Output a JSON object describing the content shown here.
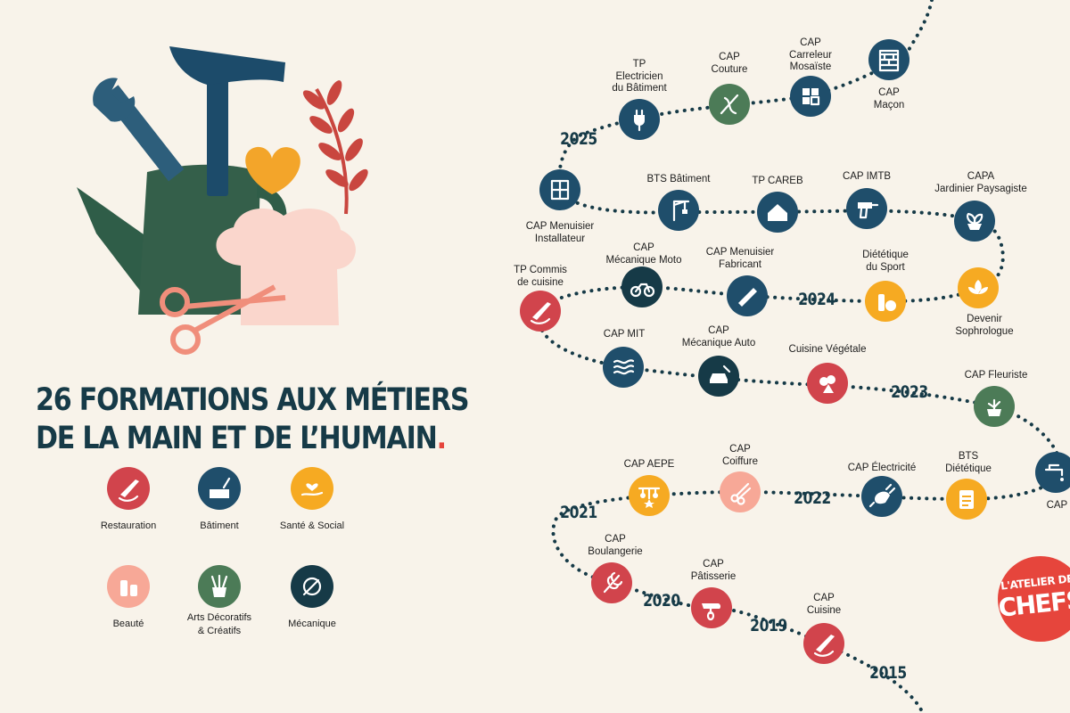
{
  "headline": {
    "line1": "26 FORMATIONS AUX MÉTIERS",
    "line2": "DE LA MAIN ET DE L’HUMAIN",
    "dot": "."
  },
  "colors": {
    "navy": "#1f4e6b",
    "dark": "#163a47",
    "red": "#d1444c",
    "orange": "#f6aa22",
    "green": "#4c7b57",
    "pink": "#f7a897",
    "background": "#f8f3ea"
  },
  "categories": [
    {
      "label": "Restauration",
      "color": "#d1444c",
      "icon": "chef-knife-icon"
    },
    {
      "label": "Bâtiment",
      "color": "#1f4e6b",
      "icon": "trowel-bricks-icon"
    },
    {
      "label": "Santé & Social",
      "color": "#f6aa22",
      "icon": "hand-heart-icon"
    },
    {
      "label": "Beauté",
      "color": "#f7a897",
      "icon": "cosmetics-icon"
    },
    {
      "label": "Arts Décoratifs\n& Créatifs",
      "color": "#4c7b57",
      "icon": "brushes-pot-icon"
    },
    {
      "label": "Mécanique",
      "color": "#163a47",
      "icon": "wrench-gear-icon"
    }
  ],
  "timeline": {
    "years": [
      "2025",
      "2024",
      "2023",
      "2022",
      "2021",
      "2020",
      "2019",
      "2015"
    ],
    "formations": [
      {
        "label": "TP\nElectricien\ndu Bâtiment",
        "color": "#1f4e6b",
        "icon": "plug-icon"
      },
      {
        "label": "CAP\nCouture",
        "color": "#4c7b57",
        "icon": "needle-icon"
      },
      {
        "label": "CAP\nCarreleur\nMosaïste",
        "color": "#1f4e6b",
        "icon": "tiles-icon"
      },
      {
        "label": "CAP\nMaçon",
        "color": "#1f4e6b",
        "icon": "bricks-icon"
      },
      {
        "label": "CAP Menuisier\nInstallateur",
        "color": "#1f4e6b",
        "icon": "window-icon"
      },
      {
        "label": "BTS Bâtiment",
        "color": "#1f4e6b",
        "icon": "crane-icon"
      },
      {
        "label": "TP CAREB",
        "color": "#1f4e6b",
        "icon": "house-icon"
      },
      {
        "label": "CAP IMTB",
        "color": "#1f4e6b",
        "icon": "drill-icon"
      },
      {
        "label": "CAPA\nJardinier Paysagiste",
        "color": "#1f4e6b",
        "icon": "plant-icon"
      },
      {
        "label": "TP Commis\nde cuisine",
        "color": "#d1444c",
        "icon": "chef-knife-icon"
      },
      {
        "label": "CAP\nMécanique Moto",
        "color": "#163a47",
        "icon": "motorbike-icon"
      },
      {
        "label": "CAP Menuisier\nFabricant",
        "color": "#1f4e6b",
        "icon": "saw-icon"
      },
      {
        "label": "Diététique\ndu Sport",
        "color": "#f6aa22",
        "icon": "apple-bottle-icon"
      },
      {
        "label": "Devenir\nSophrologue",
        "color": "#f6aa22",
        "icon": "lotus-icon"
      },
      {
        "label": "CAP MIT",
        "color": "#1f4e6b",
        "icon": "heater-icon"
      },
      {
        "label": "CAP\nMécanique Auto",
        "color": "#163a47",
        "icon": "car-wrench-icon"
      },
      {
        "label": "Cuisine Végétale",
        "color": "#d1444c",
        "icon": "vegetables-icon"
      },
      {
        "label": "CAP Fleuriste",
        "color": "#4c7b57",
        "icon": "flower-pot-icon"
      },
      {
        "label": "CAP Plom",
        "color": "#1f4e6b",
        "icon": "tap-icon"
      },
      {
        "label": "CAP AEPE",
        "color": "#f6aa22",
        "icon": "baby-mobile-icon"
      },
      {
        "label": "CAP\nCoiffure",
        "color": "#f7a897",
        "icon": "scissors-comb-icon"
      },
      {
        "label": "CAP Électricité",
        "color": "#1f4e6b",
        "icon": "plug-socket-icon"
      },
      {
        "label": "BTS\nDiététique",
        "color": "#f6aa22",
        "icon": "clipboard-icon"
      },
      {
        "label": "CAP\nBoulangerie",
        "color": "#d1444c",
        "icon": "wheat-icon"
      },
      {
        "label": "CAP\nPâtisserie",
        "color": "#d1444c",
        "icon": "mixer-icon"
      },
      {
        "label": "CAP\nCuisine",
        "color": "#d1444c",
        "icon": "chef-knife-icon"
      }
    ]
  },
  "brand": {
    "line1": "L'ATELIER DES",
    "line2": "CHEFS"
  }
}
